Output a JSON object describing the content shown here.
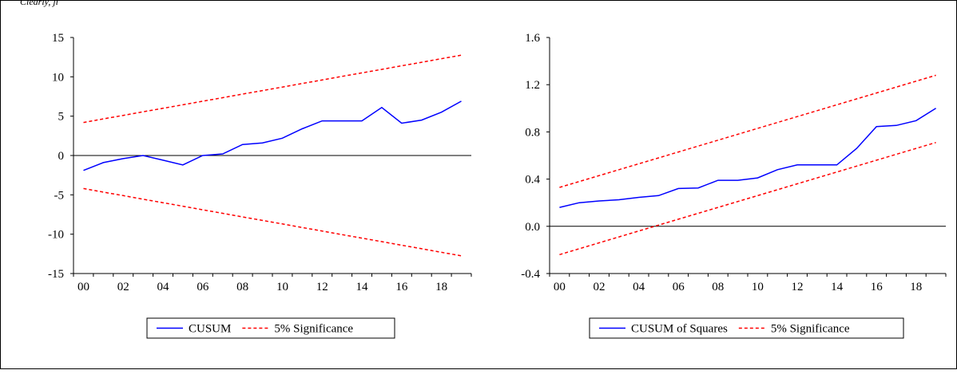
{
  "figure": {
    "top_text": "Clearly, ji"
  },
  "chart_data": [
    {
      "type": "line",
      "x": [
        "2000",
        "2001",
        "2002",
        "2003",
        "2004",
        "2005",
        "2006",
        "2007",
        "2008",
        "2009",
        "2010",
        "2011",
        "2012",
        "2013",
        "2014",
        "2015",
        "2016",
        "2017",
        "2018",
        "2019"
      ],
      "tick_labels": [
        "00",
        "02",
        "04",
        "06",
        "08",
        "10",
        "12",
        "14",
        "16",
        "18"
      ],
      "y_ticks": [
        "15",
        "10",
        "5",
        "0",
        "-5",
        "-10",
        "-15"
      ],
      "ylim": [
        -15,
        15
      ],
      "zero_line": true,
      "series": [
        {
          "name": "CUSUM",
          "color": "#0000ff",
          "style": "solid",
          "values": [
            -1.9,
            -0.9,
            -0.4,
            0.0,
            -0.6,
            -1.2,
            0.0,
            0.2,
            1.4,
            1.6,
            2.2,
            3.4,
            4.4,
            4.4,
            4.4,
            6.1,
            4.1,
            4.5,
            5.5,
            6.9
          ]
        },
        {
          "name": "5% Significance",
          "color": "#ff0000",
          "style": "dashed",
          "values": [
            4.2,
            4.65,
            5.1,
            5.55,
            6.0,
            6.45,
            6.9,
            7.35,
            7.8,
            8.25,
            8.7,
            9.15,
            9.6,
            10.05,
            10.5,
            10.95,
            11.4,
            11.85,
            12.3,
            12.75
          ]
        },
        {
          "name": "5% Significance",
          "color": "#ff0000",
          "style": "dashed",
          "in_legend": false,
          "values": [
            -4.2,
            -4.65,
            -5.1,
            -5.55,
            -6.0,
            -6.45,
            -6.9,
            -7.35,
            -7.8,
            -8.25,
            -8.7,
            -9.15,
            -9.6,
            -10.05,
            -10.5,
            -10.95,
            -11.4,
            -11.85,
            -12.3,
            -12.75
          ]
        }
      ],
      "legend_placement": "bottom-center"
    },
    {
      "type": "line",
      "x": [
        "2000",
        "2001",
        "2002",
        "2003",
        "2004",
        "2005",
        "2006",
        "2007",
        "2008",
        "2009",
        "2010",
        "2011",
        "2012",
        "2013",
        "2014",
        "2015",
        "2016",
        "2017",
        "2018",
        "2019"
      ],
      "tick_labels": [
        "00",
        "02",
        "04",
        "06",
        "08",
        "10",
        "12",
        "14",
        "16",
        "18"
      ],
      "y_ticks": [
        "1.6",
        "1.2",
        "0.8",
        "0.4",
        "0.0",
        "-0.4"
      ],
      "ylim": [
        -0.4,
        1.6
      ],
      "zero_line": true,
      "series": [
        {
          "name": "CUSUM of Squares",
          "color": "#0000ff",
          "style": "solid",
          "values": [
            0.16,
            0.2,
            0.215,
            0.225,
            0.245,
            0.26,
            0.32,
            0.325,
            0.39,
            0.39,
            0.41,
            0.48,
            0.52,
            0.52,
            0.52,
            0.66,
            0.845,
            0.855,
            0.895,
            1.0
          ]
        },
        {
          "name": "5% Significance",
          "color": "#ff0000",
          "style": "dashed",
          "values": [
            0.33,
            0.38,
            0.43,
            0.48,
            0.53,
            0.58,
            0.63,
            0.68,
            0.73,
            0.78,
            0.83,
            0.88,
            0.93,
            0.98,
            1.03,
            1.08,
            1.13,
            1.18,
            1.23,
            1.28
          ]
        },
        {
          "name": "5% Significance",
          "color": "#ff0000",
          "style": "dashed",
          "in_legend": false,
          "values": [
            -0.24,
            -0.19,
            -0.14,
            -0.09,
            -0.04,
            0.01,
            0.06,
            0.11,
            0.16,
            0.21,
            0.26,
            0.31,
            0.36,
            0.41,
            0.46,
            0.51,
            0.56,
            0.61,
            0.66,
            0.71
          ]
        }
      ],
      "legend_placement": "bottom-center"
    }
  ]
}
